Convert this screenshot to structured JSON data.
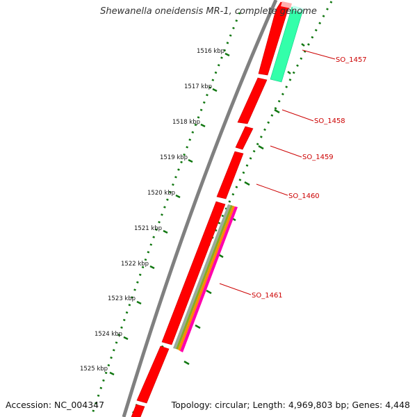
{
  "title": "Shewanella oneidensis MR-1, complete genome",
  "footer": {
    "accession": "Accession: NC_004347",
    "summary": "Topology: circular; Length: 4,969,803 bp; Genes: 4,448"
  },
  "ticks": [
    "1516 kbp",
    "1517 kbp",
    "1518 kbp",
    "1519 kbp",
    "1520 kbp",
    "1521 kbp",
    "1522 kbp",
    "1523 kbp",
    "1524 kbp",
    "1525 kbp"
  ],
  "genes": [
    "SO_1457",
    "SO_1458",
    "SO_1459",
    "SO_1460",
    "SO_1461"
  ],
  "colors": {
    "backbone": "#808080",
    "cds": "#ff0000",
    "cds_pale": "#ffb0b0",
    "cog_teal": "#33ffaa",
    "cog_pink": "#ff00aa",
    "cog_olive": "#88aa22",
    "cog_orange": "#ff8800",
    "tick_green": "#117711",
    "label_red": "#cc0000"
  }
}
